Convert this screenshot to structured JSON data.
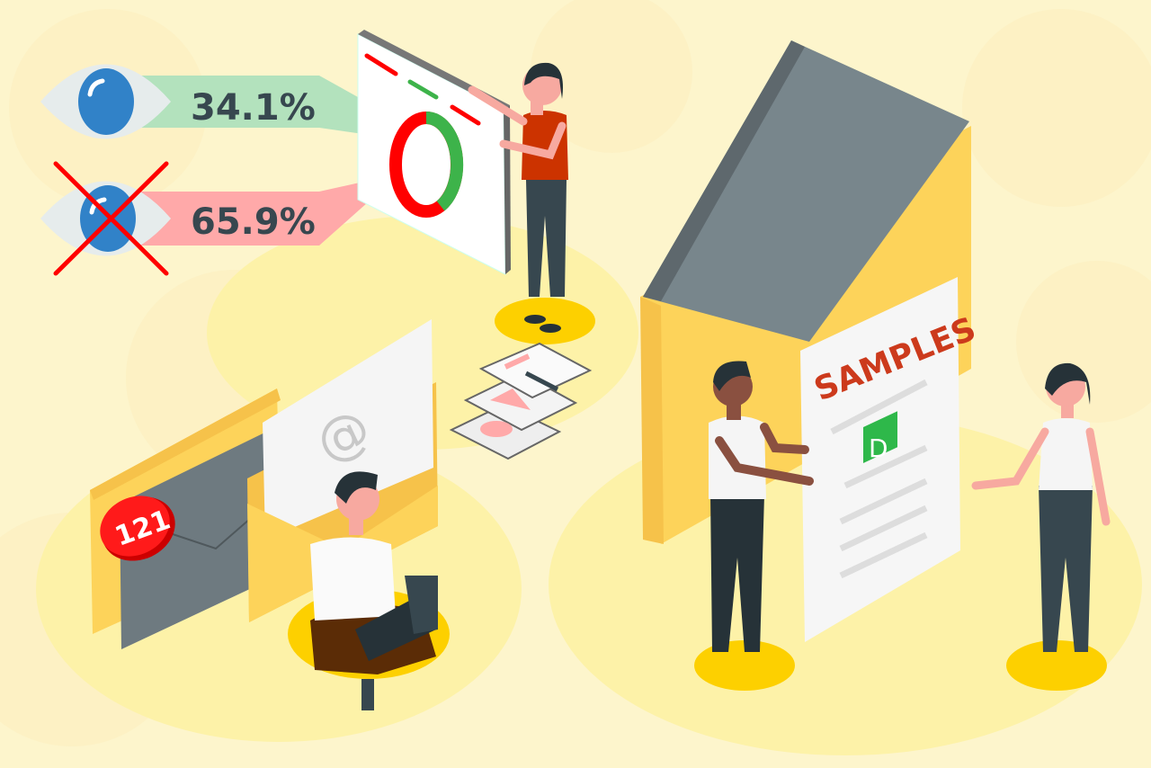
{
  "stats": {
    "seen": {
      "value": "34.1%",
      "icon": "eye-icon",
      "color": "#b3e2bd"
    },
    "unseen": {
      "value": "65.9%",
      "icon": "eye-crossed-icon",
      "color": "#ffa9a9"
    }
  },
  "mail": {
    "badge_count": "121",
    "letter_symbol": "@"
  },
  "document": {
    "title": "SAMPLES",
    "badge_letter": "D"
  },
  "colors": {
    "background": "#fdf5cc",
    "platform": "#fdf2a8",
    "accent_yellow": "#fdd35a",
    "envelope_grey": "#6e7a80",
    "red": "#ff0000",
    "green": "#3db34a",
    "iris_blue": "#3182c8",
    "text_dark": "#37474f"
  }
}
